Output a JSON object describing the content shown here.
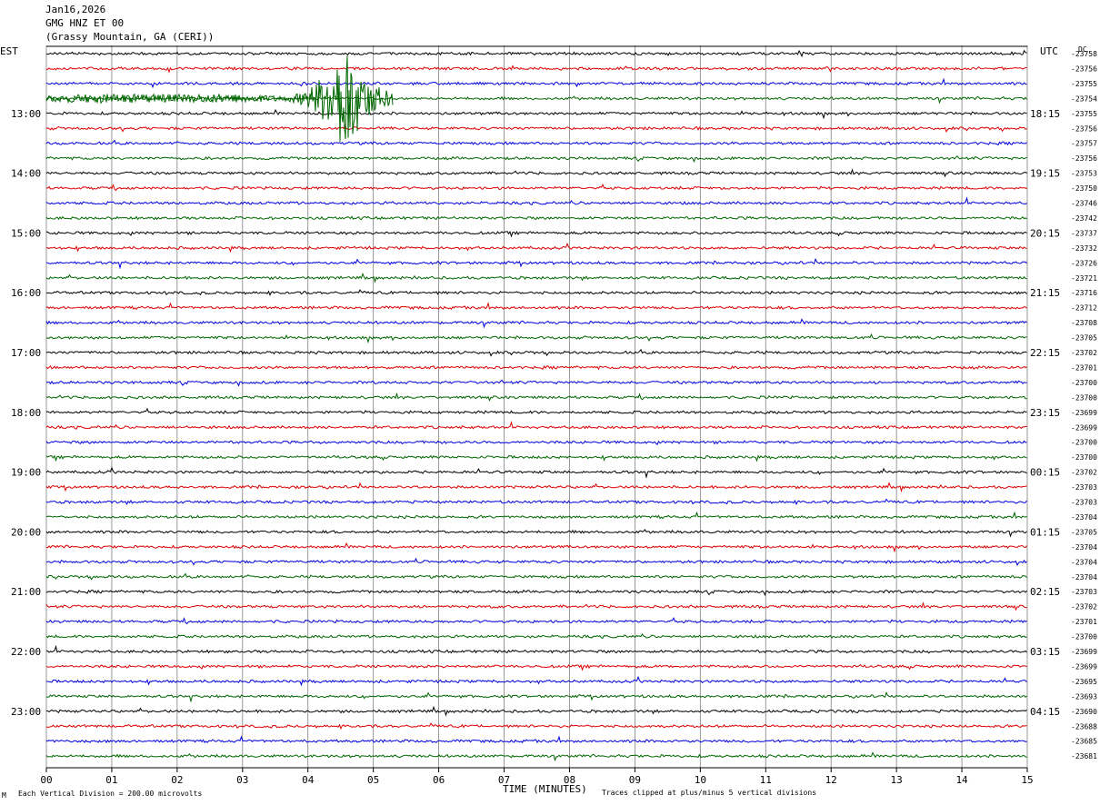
{
  "header": {
    "date": "Jan16,2026",
    "station": "GMG HNZ ET 00",
    "location": "(Grassy Mountain, GA (CERI))"
  },
  "labels": {
    "left_zone": "EST",
    "right_zone": "UTC",
    "dc_label": "DC",
    "x_axis_title": "TIME (MINUTES)",
    "scale_note": "Each Vertical Division =  200.00 microvolts",
    "clip_note": "Traces clipped at plus/minus 5 vertical divisions",
    "corner_mark": "M"
  },
  "colors": {
    "trace_cycle": [
      "#000000",
      "#dd0000",
      "#0000dd",
      "#006600"
    ],
    "grid": "#808080"
  },
  "chart_data": {
    "type": "line",
    "title": "GMG HNZ ET 00",
    "xlabel": "TIME (MINUTES)",
    "ylabel": "",
    "xlim": [
      0,
      15
    ],
    "x_ticks": [
      "00",
      "01",
      "02",
      "03",
      "04",
      "05",
      "06",
      "07",
      "08",
      "09",
      "10",
      "11",
      "12",
      "13",
      "14",
      "15"
    ],
    "left_time_labels": [
      "13:00",
      "14:00",
      "15:00",
      "16:00",
      "17:00",
      "18:00",
      "19:00",
      "20:00",
      "21:00",
      "22:00",
      "23:00"
    ],
    "right_time_labels": [
      "18:15",
      "19:15",
      "20:15",
      "21:15",
      "22:15",
      "23:15",
      "00:15",
      "01:15",
      "02:15",
      "03:15",
      "04:15"
    ],
    "dc_offsets": [
      -23758,
      -23756,
      -23755,
      -23754,
      -23755,
      -23756,
      -23757,
      -23756,
      -23753,
      -23750,
      -23746,
      -23742,
      -23737,
      -23732,
      -23726,
      -23721,
      -23716,
      -23712,
      -23708,
      -23705,
      -23702,
      -23701,
      -23700,
      -23700,
      -23699,
      -23699,
      -23700,
      -23700,
      -23702,
      -23703,
      -23703,
      -23704,
      -23705,
      -23704,
      -23704,
      -23704,
      -23703,
      -23702,
      -23701,
      -23700,
      -23699,
      -23699,
      -23695,
      -23693,
      -23690,
      -23688,
      -23685,
      -23681
    ],
    "trace_count": 48,
    "minutes_per_trace": 15,
    "grid": true,
    "events": [
      {
        "trace_index": 3,
        "start_min": 3.7,
        "peak_min": 4.6,
        "end_min": 5.3,
        "description": "earthquake signal, clipped"
      }
    ]
  }
}
